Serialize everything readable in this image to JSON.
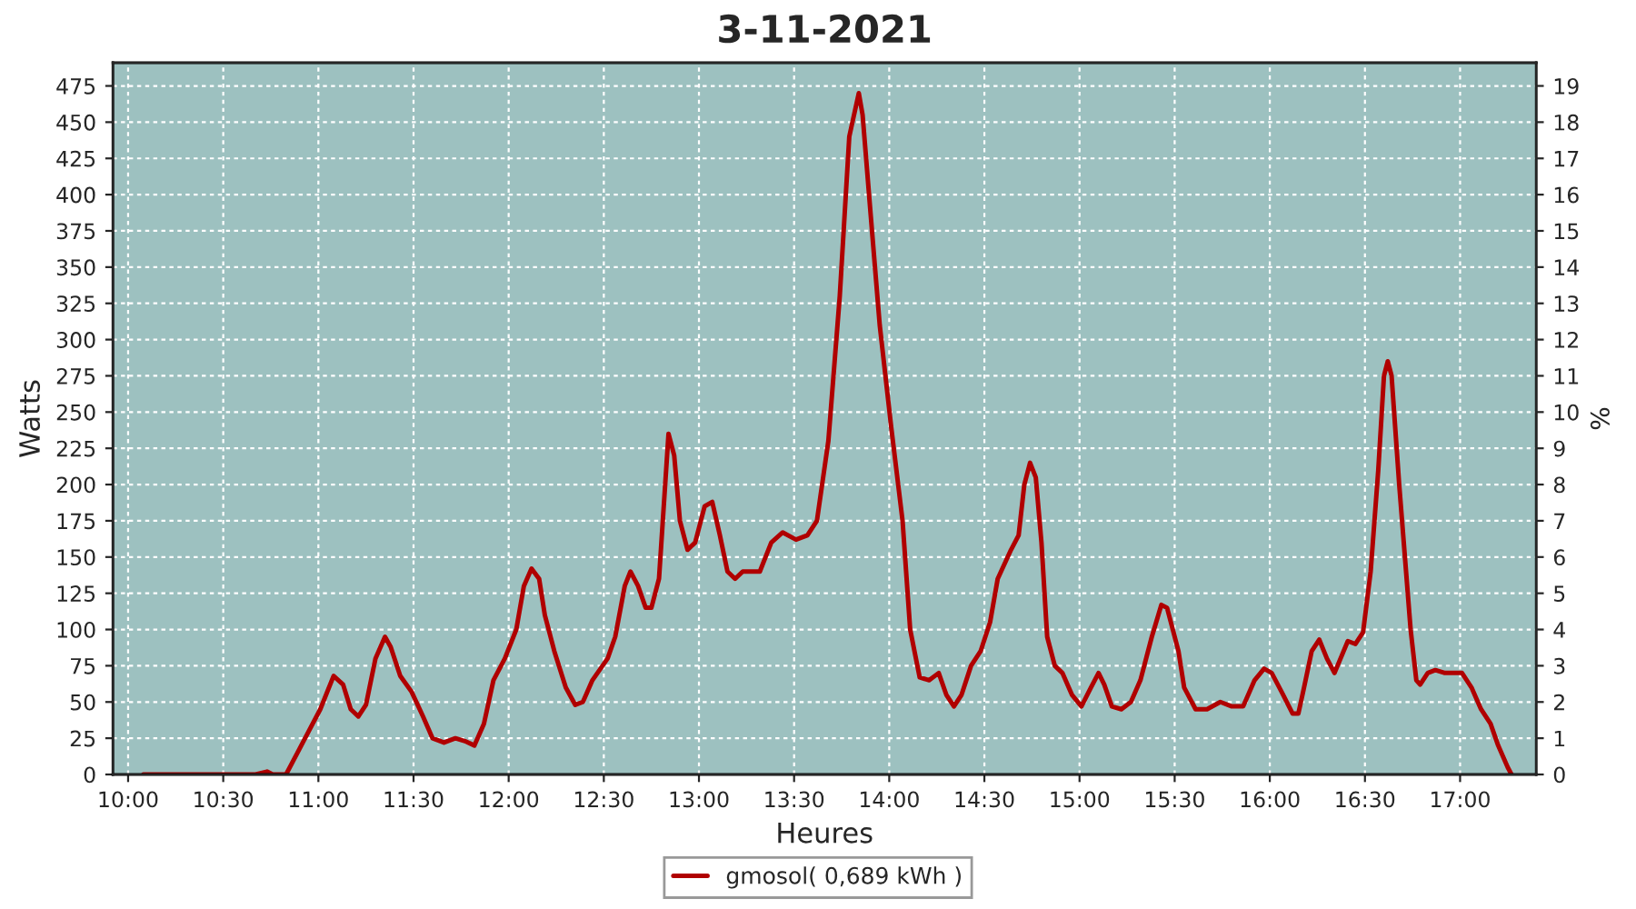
{
  "chart_data": {
    "type": "line",
    "title": "3-11-2021",
    "xlabel": "Heures",
    "ylabel": "Watts",
    "y2label": "%",
    "xlim": [
      9.92,
      17.4
    ],
    "xticks": [
      {
        "value": 10,
        "label": "10:00"
      },
      {
        "value": 10.5,
        "label": "10:30"
      },
      {
        "value": 11,
        "label": "11:00"
      },
      {
        "value": 11.5,
        "label": "11:30"
      },
      {
        "value": 12,
        "label": "12:00"
      },
      {
        "value": 12.5,
        "label": "12:30"
      },
      {
        "value": 13,
        "label": "13:00"
      },
      {
        "value": 13.5,
        "label": "13:30"
      },
      {
        "value": 14,
        "label": "14:00"
      },
      {
        "value": 14.5,
        "label": "14:30"
      },
      {
        "value": 15,
        "label": "15:00"
      },
      {
        "value": 15.5,
        "label": "15:30"
      },
      {
        "value": 16,
        "label": "16:00"
      },
      {
        "value": 16.5,
        "label": "16:30"
      },
      {
        "value": 17,
        "label": "17:00"
      }
    ],
    "ylim": [
      0,
      491
    ],
    "yticks": [
      0,
      25,
      50,
      75,
      100,
      125,
      150,
      175,
      200,
      225,
      250,
      275,
      300,
      325,
      350,
      375,
      400,
      425,
      450,
      475
    ],
    "y2lim": [
      0,
      19.64
    ],
    "y2ticks": [
      0,
      1,
      2,
      3,
      4,
      5,
      6,
      7,
      8,
      9,
      10,
      11,
      12,
      13,
      14,
      15,
      16,
      17,
      18,
      19
    ],
    "grid": true,
    "legend": "bottom",
    "line_style": "solid",
    "marker": "none",
    "series": [
      {
        "name": "gmosol( 0,689 kWh )",
        "color": "#b00000",
        "x": [
          10.08,
          10.67,
          10.73,
          10.76,
          10.83,
          10.89,
          10.95,
          11.01,
          11.08,
          11.13,
          11.17,
          11.21,
          11.25,
          11.3,
          11.35,
          11.38,
          11.43,
          11.49,
          11.55,
          11.6,
          11.66,
          11.72,
          11.77,
          11.82,
          11.87,
          11.92,
          11.98,
          12.04,
          12.08,
          12.12,
          12.16,
          12.19,
          12.24,
          12.3,
          12.35,
          12.39,
          12.44,
          12.52,
          12.56,
          12.61,
          12.64,
          12.68,
          12.72,
          12.75,
          12.79,
          12.81,
          12.84,
          12.87,
          12.9,
          12.94,
          12.98,
          13.03,
          13.07,
          13.11,
          13.15,
          13.19,
          13.23,
          13.32,
          13.38,
          13.44,
          13.51,
          13.57,
          13.62,
          13.68,
          13.74,
          13.79,
          13.84,
          13.86,
          13.9,
          13.95,
          14.01,
          14.07,
          14.11,
          14.16,
          14.21,
          14.26,
          14.3,
          14.34,
          14.38,
          14.43,
          14.48,
          14.53,
          14.57,
          14.64,
          14.68,
          14.71,
          14.74,
          14.77,
          14.8,
          14.83,
          14.87,
          14.91,
          14.96,
          15.01,
          15.06,
          15.1,
          15.13,
          15.17,
          15.22,
          15.27,
          15.32,
          15.38,
          15.43,
          15.46,
          15.52,
          15.55,
          15.61,
          15.67,
          15.74,
          15.8,
          15.86,
          15.92,
          15.97,
          16.01,
          16.07,
          16.12,
          16.15,
          16.18,
          16.22,
          16.26,
          16.3,
          16.34,
          16.41,
          16.45,
          16.49,
          16.53,
          16.57,
          16.6,
          16.62,
          16.64,
          16.68,
          16.71,
          16.74,
          16.77,
          16.79,
          16.83,
          16.87,
          16.92,
          17.01,
          17.06,
          17.11,
          17.16,
          17.2,
          17.25,
          17.27
        ],
        "values": [
          0,
          0,
          2,
          0,
          0,
          15,
          30,
          45,
          68,
          62,
          45,
          40,
          48,
          80,
          95,
          88,
          68,
          57,
          40,
          25,
          22,
          25,
          23,
          20,
          35,
          65,
          80,
          100,
          130,
          142,
          135,
          110,
          85,
          60,
          48,
          50,
          65,
          80,
          95,
          130,
          140,
          130,
          115,
          115,
          135,
          175,
          235,
          220,
          175,
          155,
          160,
          185,
          188,
          165,
          140,
          135,
          140,
          140,
          160,
          167,
          162,
          165,
          175,
          230,
          330,
          440,
          470,
          455,
          390,
          310,
          240,
          175,
          100,
          67,
          65,
          70,
          55,
          47,
          55,
          75,
          85,
          105,
          135,
          155,
          165,
          200,
          215,
          205,
          160,
          95,
          75,
          70,
          55,
          47,
          60,
          70,
          62,
          47,
          45,
          50,
          65,
          95,
          117,
          115,
          85,
          60,
          45,
          45,
          50,
          47,
          47,
          65,
          73,
          70,
          55,
          42,
          42,
          60,
          85,
          93,
          80,
          70,
          92,
          90,
          98,
          140,
          210,
          275,
          285,
          275,
          200,
          150,
          100,
          65,
          62,
          70,
          72,
          70,
          70,
          60,
          45,
          35,
          20,
          5,
          0
        ]
      }
    ]
  }
}
